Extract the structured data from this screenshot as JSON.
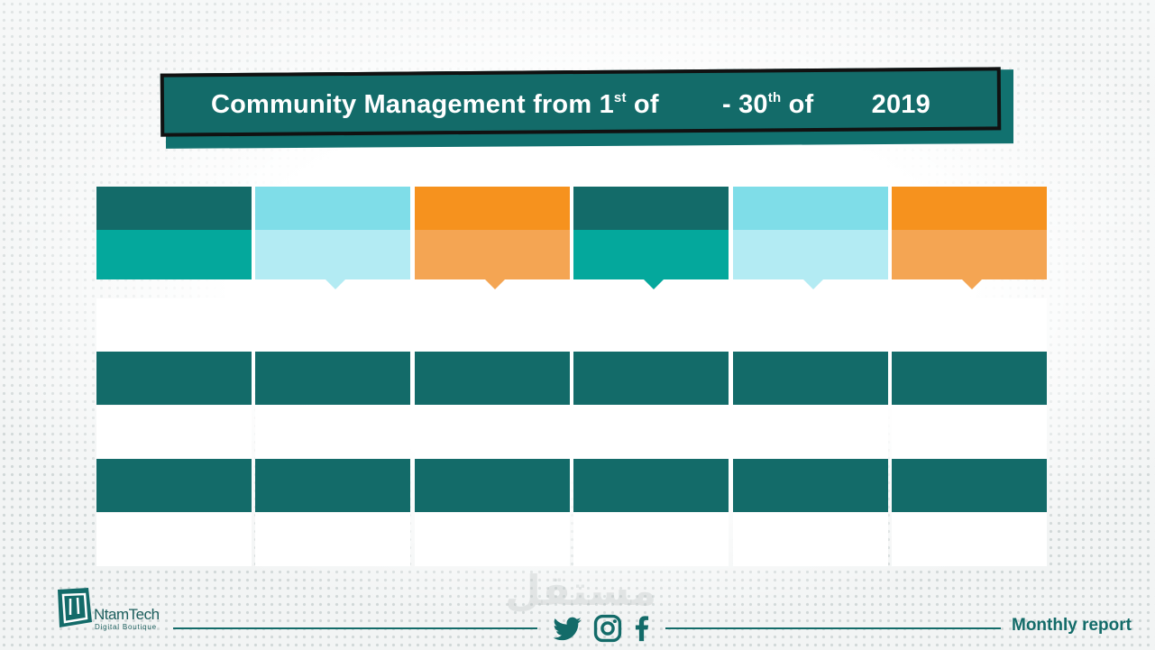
{
  "slide": {
    "title_parts": {
      "start": "Community Management from 1",
      "st": "st",
      "of1": "of",
      "dash": "- 30",
      "th": "th",
      "of2": "of",
      "year": "2019"
    },
    "footer": {
      "brand_name": "NtamTech",
      "brand_tagline": "Digital Boutique",
      "report_label": "Monthly report",
      "social_icons": [
        "twitter-icon",
        "instagram-icon",
        "facebook-icon"
      ],
      "watermark": "مستقل"
    }
  },
  "colors": {
    "teal_dark": "#136b69",
    "teal": "#04a89c",
    "cyan": "#7fdde8",
    "cyan_light": "#b3ebf3",
    "orange": "#f6921e",
    "orange_light": "#f4a553"
  },
  "columns": [
    {
      "top": "#136b69",
      "bottom": "#04a89c",
      "pointer": false
    },
    {
      "top": "#7fdde8",
      "bottom": "#b3ebf3",
      "pointer": true
    },
    {
      "top": "#f6921e",
      "bottom": "#f4a553",
      "pointer": true
    },
    {
      "top": "#136b69",
      "bottom": "#04a89c",
      "pointer": true
    },
    {
      "top": "#7fdde8",
      "bottom": "#b3ebf3",
      "pointer": true
    },
    {
      "top": "#f6921e",
      "bottom": "#f4a553",
      "pointer": true
    }
  ],
  "rows": [
    "light",
    "dark",
    "light",
    "dark",
    "light"
  ]
}
